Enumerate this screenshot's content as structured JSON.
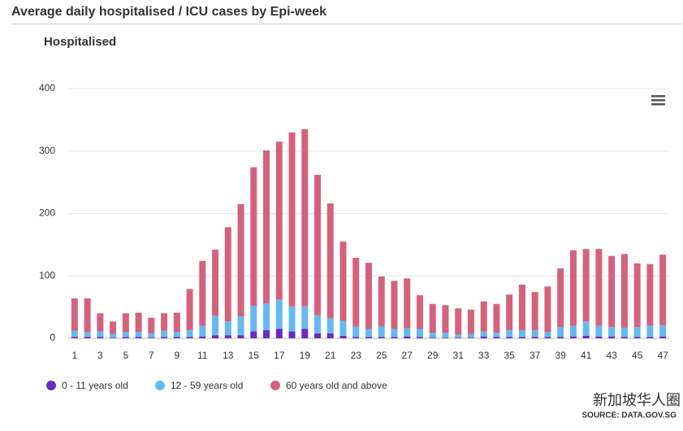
{
  "header": {
    "title": "Average daily hospitalised / ICU cases by Epi-week"
  },
  "chart_data": {
    "type": "stacked_bar",
    "title": "Hospitalised",
    "categories": [
      1,
      null,
      3,
      null,
      5,
      null,
      7,
      null,
      9,
      null,
      11,
      null,
      13,
      null,
      15,
      null,
      17,
      null,
      19,
      null,
      21,
      null,
      23,
      null,
      25,
      null,
      27,
      null,
      29,
      null,
      31,
      null,
      33,
      null,
      35,
      null,
      37,
      null,
      39,
      null,
      41,
      null,
      43,
      null,
      45,
      null,
      47
    ],
    "series": [
      {
        "name": "0 - 11 years old",
        "color": "#6a2cc0",
        "values": [
          2,
          2,
          2,
          1,
          2,
          2,
          1,
          2,
          2,
          2,
          3,
          5,
          5,
          5,
          11,
          13,
          15,
          11,
          15,
          8,
          8,
          4,
          2,
          2,
          2,
          2,
          3,
          2,
          1,
          1,
          1,
          1,
          3,
          2,
          2,
          2,
          2,
          2,
          2,
          3,
          4,
          3,
          3,
          2,
          2,
          2,
          3
        ]
      },
      {
        "name": "12 - 59 years old",
        "color": "#66b8f0",
        "values": [
          10,
          8,
          9,
          6,
          8,
          8,
          7,
          10,
          8,
          11,
          17,
          31,
          22,
          30,
          41,
          43,
          47,
          40,
          36,
          29,
          24,
          24,
          17,
          13,
          17,
          13,
          13,
          13,
          8,
          8,
          5,
          6,
          8,
          7,
          11,
          11,
          11,
          8,
          16,
          17,
          23,
          17,
          15,
          15,
          16,
          18,
          18
        ]
      },
      {
        "name": "60 years old and above",
        "color": "#d4627e",
        "values": [
          52,
          54,
          29,
          20,
          30,
          31,
          25,
          28,
          31,
          66,
          104,
          106,
          151,
          180,
          222,
          245,
          253,
          279,
          284,
          225,
          184,
          127,
          110,
          106,
          80,
          77,
          80,
          54,
          46,
          44,
          42,
          39,
          48,
          46,
          57,
          73,
          61,
          73,
          94,
          121,
          116,
          123,
          114,
          118,
          102,
          99,
          113
        ]
      }
    ],
    "ylim": [
      0,
      400
    ],
    "yticks": [
      0,
      100,
      200,
      300,
      400
    ],
    "grid": true
  },
  "footer": {
    "watermark": "新加坡华人圈",
    "source": "SOURCE: DATA.GOV.SG"
  }
}
